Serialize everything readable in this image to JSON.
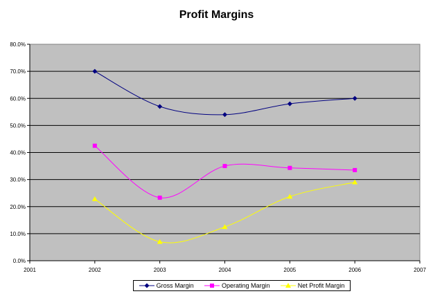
{
  "chart_data": {
    "type": "line",
    "title": "Profit Margins",
    "xlabel": "",
    "ylabel": "",
    "xlim": [
      2001,
      2007
    ],
    "ylim": [
      0,
      0.8
    ],
    "x_ticks": [
      "2001",
      "2002",
      "2003",
      "2004",
      "2005",
      "2006",
      "2007"
    ],
    "y_ticks": [
      "0.0%",
      "10.0%",
      "20.0%",
      "30.0%",
      "40.0%",
      "50.0%",
      "60.0%",
      "70.0%",
      "80.0%"
    ],
    "grid": "horizontal",
    "legend_position": "bottom",
    "plot_background": "#c0c0c0",
    "series": [
      {
        "name": "Gross Margin",
        "color": "#000080",
        "marker": "diamond",
        "x": [
          2002,
          2003,
          2004,
          2005,
          2006
        ],
        "values": [
          0.7,
          0.57,
          0.54,
          0.58,
          0.6
        ]
      },
      {
        "name": "Operating Margin",
        "color": "#ff00ff",
        "marker": "square",
        "x": [
          2002,
          2003,
          2004,
          2005,
          2006
        ],
        "values": [
          0.425,
          0.233,
          0.35,
          0.343,
          0.335
        ]
      },
      {
        "name": "Net Profit Margin",
        "color": "#ffff00",
        "marker": "triangle",
        "x": [
          2002,
          2003,
          2004,
          2005,
          2006
        ],
        "values": [
          0.228,
          0.07,
          0.125,
          0.237,
          0.29
        ]
      }
    ]
  }
}
